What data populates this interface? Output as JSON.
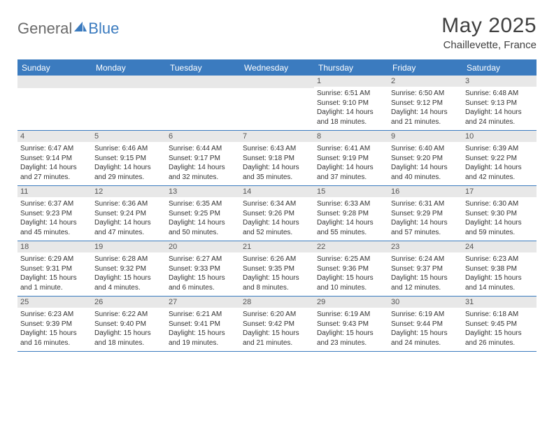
{
  "logo": {
    "general": "General",
    "blue": "Blue"
  },
  "title": "May 2025",
  "location": "Chaillevette, France",
  "colors": {
    "accent": "#3b7bbf",
    "header_text": "#ffffff",
    "day_bar_bg": "#e8e8e8",
    "text": "#333333",
    "title_text": "#404040"
  },
  "day_headers": [
    "Sunday",
    "Monday",
    "Tuesday",
    "Wednesday",
    "Thursday",
    "Friday",
    "Saturday"
  ],
  "weeks": [
    [
      {
        "num": "",
        "sunrise": "",
        "sunset": "",
        "daylight": ""
      },
      {
        "num": "",
        "sunrise": "",
        "sunset": "",
        "daylight": ""
      },
      {
        "num": "",
        "sunrise": "",
        "sunset": "",
        "daylight": ""
      },
      {
        "num": "",
        "sunrise": "",
        "sunset": "",
        "daylight": ""
      },
      {
        "num": "1",
        "sunrise": "Sunrise: 6:51 AM",
        "sunset": "Sunset: 9:10 PM",
        "daylight": "Daylight: 14 hours and 18 minutes."
      },
      {
        "num": "2",
        "sunrise": "Sunrise: 6:50 AM",
        "sunset": "Sunset: 9:12 PM",
        "daylight": "Daylight: 14 hours and 21 minutes."
      },
      {
        "num": "3",
        "sunrise": "Sunrise: 6:48 AM",
        "sunset": "Sunset: 9:13 PM",
        "daylight": "Daylight: 14 hours and 24 minutes."
      }
    ],
    [
      {
        "num": "4",
        "sunrise": "Sunrise: 6:47 AM",
        "sunset": "Sunset: 9:14 PM",
        "daylight": "Daylight: 14 hours and 27 minutes."
      },
      {
        "num": "5",
        "sunrise": "Sunrise: 6:46 AM",
        "sunset": "Sunset: 9:15 PM",
        "daylight": "Daylight: 14 hours and 29 minutes."
      },
      {
        "num": "6",
        "sunrise": "Sunrise: 6:44 AM",
        "sunset": "Sunset: 9:17 PM",
        "daylight": "Daylight: 14 hours and 32 minutes."
      },
      {
        "num": "7",
        "sunrise": "Sunrise: 6:43 AM",
        "sunset": "Sunset: 9:18 PM",
        "daylight": "Daylight: 14 hours and 35 minutes."
      },
      {
        "num": "8",
        "sunrise": "Sunrise: 6:41 AM",
        "sunset": "Sunset: 9:19 PM",
        "daylight": "Daylight: 14 hours and 37 minutes."
      },
      {
        "num": "9",
        "sunrise": "Sunrise: 6:40 AM",
        "sunset": "Sunset: 9:20 PM",
        "daylight": "Daylight: 14 hours and 40 minutes."
      },
      {
        "num": "10",
        "sunrise": "Sunrise: 6:39 AM",
        "sunset": "Sunset: 9:22 PM",
        "daylight": "Daylight: 14 hours and 42 minutes."
      }
    ],
    [
      {
        "num": "11",
        "sunrise": "Sunrise: 6:37 AM",
        "sunset": "Sunset: 9:23 PM",
        "daylight": "Daylight: 14 hours and 45 minutes."
      },
      {
        "num": "12",
        "sunrise": "Sunrise: 6:36 AM",
        "sunset": "Sunset: 9:24 PM",
        "daylight": "Daylight: 14 hours and 47 minutes."
      },
      {
        "num": "13",
        "sunrise": "Sunrise: 6:35 AM",
        "sunset": "Sunset: 9:25 PM",
        "daylight": "Daylight: 14 hours and 50 minutes."
      },
      {
        "num": "14",
        "sunrise": "Sunrise: 6:34 AM",
        "sunset": "Sunset: 9:26 PM",
        "daylight": "Daylight: 14 hours and 52 minutes."
      },
      {
        "num": "15",
        "sunrise": "Sunrise: 6:33 AM",
        "sunset": "Sunset: 9:28 PM",
        "daylight": "Daylight: 14 hours and 55 minutes."
      },
      {
        "num": "16",
        "sunrise": "Sunrise: 6:31 AM",
        "sunset": "Sunset: 9:29 PM",
        "daylight": "Daylight: 14 hours and 57 minutes."
      },
      {
        "num": "17",
        "sunrise": "Sunrise: 6:30 AM",
        "sunset": "Sunset: 9:30 PM",
        "daylight": "Daylight: 14 hours and 59 minutes."
      }
    ],
    [
      {
        "num": "18",
        "sunrise": "Sunrise: 6:29 AM",
        "sunset": "Sunset: 9:31 PM",
        "daylight": "Daylight: 15 hours and 1 minute."
      },
      {
        "num": "19",
        "sunrise": "Sunrise: 6:28 AM",
        "sunset": "Sunset: 9:32 PM",
        "daylight": "Daylight: 15 hours and 4 minutes."
      },
      {
        "num": "20",
        "sunrise": "Sunrise: 6:27 AM",
        "sunset": "Sunset: 9:33 PM",
        "daylight": "Daylight: 15 hours and 6 minutes."
      },
      {
        "num": "21",
        "sunrise": "Sunrise: 6:26 AM",
        "sunset": "Sunset: 9:35 PM",
        "daylight": "Daylight: 15 hours and 8 minutes."
      },
      {
        "num": "22",
        "sunrise": "Sunrise: 6:25 AM",
        "sunset": "Sunset: 9:36 PM",
        "daylight": "Daylight: 15 hours and 10 minutes."
      },
      {
        "num": "23",
        "sunrise": "Sunrise: 6:24 AM",
        "sunset": "Sunset: 9:37 PM",
        "daylight": "Daylight: 15 hours and 12 minutes."
      },
      {
        "num": "24",
        "sunrise": "Sunrise: 6:23 AM",
        "sunset": "Sunset: 9:38 PM",
        "daylight": "Daylight: 15 hours and 14 minutes."
      }
    ],
    [
      {
        "num": "25",
        "sunrise": "Sunrise: 6:23 AM",
        "sunset": "Sunset: 9:39 PM",
        "daylight": "Daylight: 15 hours and 16 minutes."
      },
      {
        "num": "26",
        "sunrise": "Sunrise: 6:22 AM",
        "sunset": "Sunset: 9:40 PM",
        "daylight": "Daylight: 15 hours and 18 minutes."
      },
      {
        "num": "27",
        "sunrise": "Sunrise: 6:21 AM",
        "sunset": "Sunset: 9:41 PM",
        "daylight": "Daylight: 15 hours and 19 minutes."
      },
      {
        "num": "28",
        "sunrise": "Sunrise: 6:20 AM",
        "sunset": "Sunset: 9:42 PM",
        "daylight": "Daylight: 15 hours and 21 minutes."
      },
      {
        "num": "29",
        "sunrise": "Sunrise: 6:19 AM",
        "sunset": "Sunset: 9:43 PM",
        "daylight": "Daylight: 15 hours and 23 minutes."
      },
      {
        "num": "30",
        "sunrise": "Sunrise: 6:19 AM",
        "sunset": "Sunset: 9:44 PM",
        "daylight": "Daylight: 15 hours and 24 minutes."
      },
      {
        "num": "31",
        "sunrise": "Sunrise: 6:18 AM",
        "sunset": "Sunset: 9:45 PM",
        "daylight": "Daylight: 15 hours and 26 minutes."
      }
    ]
  ]
}
